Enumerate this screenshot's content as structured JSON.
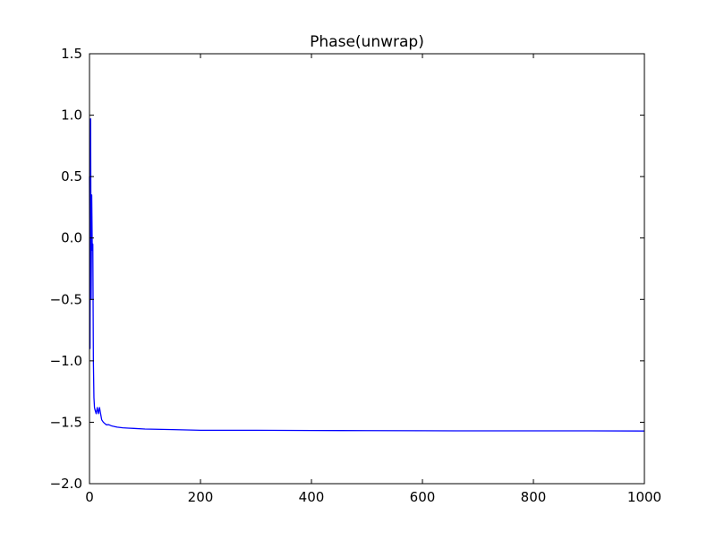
{
  "chart_data": {
    "type": "line",
    "title": "Phase(unwrap)",
    "xlabel": "",
    "ylabel": "",
    "xlim": [
      0,
      1000
    ],
    "ylim": [
      -2.0,
      1.5
    ],
    "x_ticks": [
      "0",
      "200",
      "400",
      "600",
      "800",
      "1000"
    ],
    "y_ticks": [
      "1.5",
      "1.0",
      "0.5",
      "0.0",
      "−0.5",
      "−1.0",
      "−1.5",
      "−2.0"
    ],
    "grid": false,
    "series": [
      {
        "color": "#0000ff",
        "x": [
          0,
          1,
          2,
          3,
          4,
          5,
          6,
          7,
          8,
          9,
          10,
          12,
          14,
          16,
          18,
          20,
          22,
          25,
          30,
          35,
          40,
          50,
          60,
          70,
          80,
          100,
          150,
          200,
          300,
          400,
          500,
          600,
          700,
          800,
          900,
          1000
        ],
        "y": [
          0.5,
          -0.9,
          0.97,
          -0.5,
          0.35,
          -0.1,
          -0.05,
          -1.0,
          -1.3,
          -1.38,
          -1.4,
          -1.43,
          -1.38,
          -1.43,
          -1.38,
          -1.43,
          -1.48,
          -1.5,
          -1.52,
          -1.52,
          -1.53,
          -1.54,
          -1.545,
          -1.548,
          -1.55,
          -1.555,
          -1.56,
          -1.565,
          -1.565,
          -1.567,
          -1.568,
          -1.569,
          -1.57,
          -1.57,
          -1.57,
          -1.571
        ]
      }
    ]
  }
}
